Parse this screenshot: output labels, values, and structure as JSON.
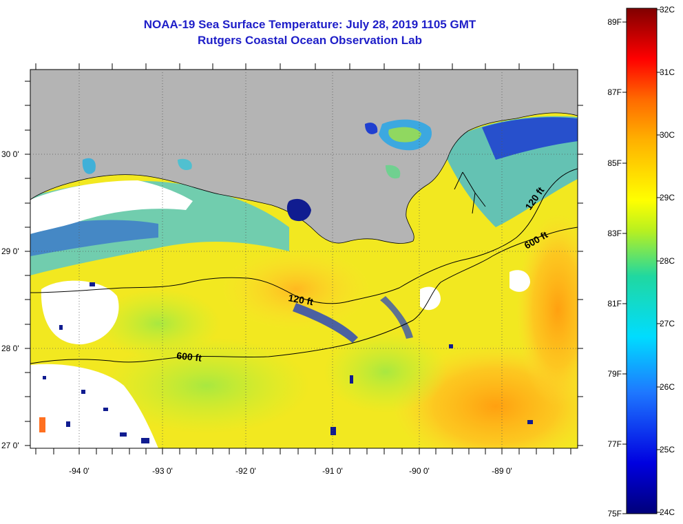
{
  "title": "NOAA-19 Sea Surface Temperature:  July 28, 2019 1105 GMT",
  "subtitle": "Rutgers Coastal Ocean Observation Lab",
  "lat_labels": [
    "30 0'",
    "29 0'",
    "28 0'",
    "27 0'"
  ],
  "lon_labels": [
    "-94 0'",
    "-93 0'",
    "-92 0'",
    "-91 0'",
    "-90 0'",
    "-89 0'"
  ],
  "contour_labels": [
    "120 ft",
    "600 ft",
    "120 ft",
    "600 ft"
  ],
  "colorbar": {
    "celsius": [
      "32C",
      "31C",
      "30C",
      "29C",
      "28C",
      "27C",
      "26C",
      "25C",
      "24C"
    ],
    "fahrenheit": [
      "89F",
      "87F",
      "85F",
      "83F",
      "81F",
      "79F",
      "77F",
      "75F"
    ]
  },
  "colors": {
    "land": "#b4b4b4",
    "no_data": "#ffffff",
    "title": "#1e1ec8"
  }
}
